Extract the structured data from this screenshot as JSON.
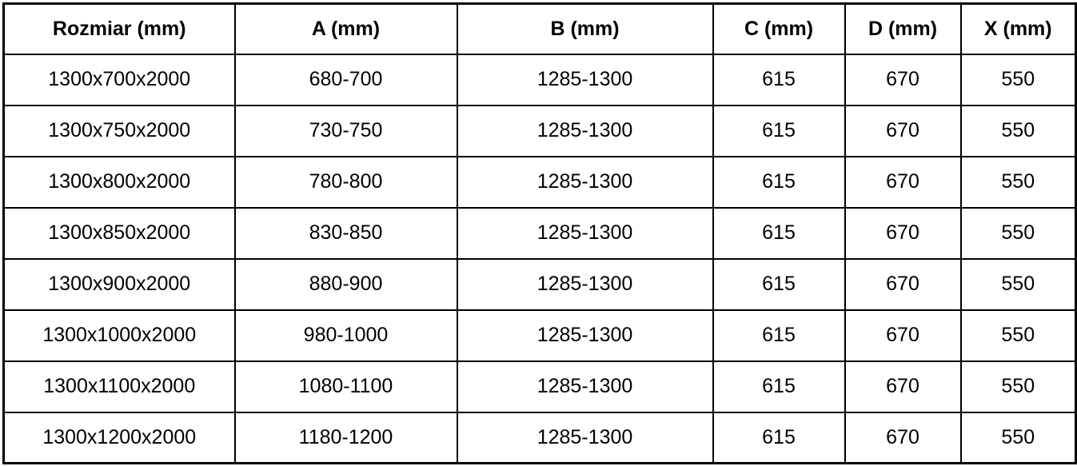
{
  "colors": {
    "border": "#000000",
    "text": "#000000",
    "background": "#ffffff"
  },
  "table": {
    "headers": [
      "Rozmiar (mm)",
      "A (mm)",
      "B (mm)",
      "C (mm)",
      "D (mm)",
      "X (mm)"
    ],
    "rows": [
      [
        "1300x700x2000",
        "680-700",
        "1285-1300",
        "615",
        "670",
        "550"
      ],
      [
        "1300x750x2000",
        "730-750",
        "1285-1300",
        "615",
        "670",
        "550"
      ],
      [
        "1300x800x2000",
        "780-800",
        "1285-1300",
        "615",
        "670",
        "550"
      ],
      [
        "1300x850x2000",
        "830-850",
        "1285-1300",
        "615",
        "670",
        "550"
      ],
      [
        "1300x900x2000",
        "880-900",
        "1285-1300",
        "615",
        "670",
        "550"
      ],
      [
        "1300x1000x2000",
        "980-1000",
        "1285-1300",
        "615",
        "670",
        "550"
      ],
      [
        "1300x1100x2000",
        "1080-1100",
        "1285-1300",
        "615",
        "670",
        "550"
      ],
      [
        "1300x1200x2000",
        "1180-1200",
        "1285-1300",
        "615",
        "670",
        "550"
      ]
    ]
  }
}
